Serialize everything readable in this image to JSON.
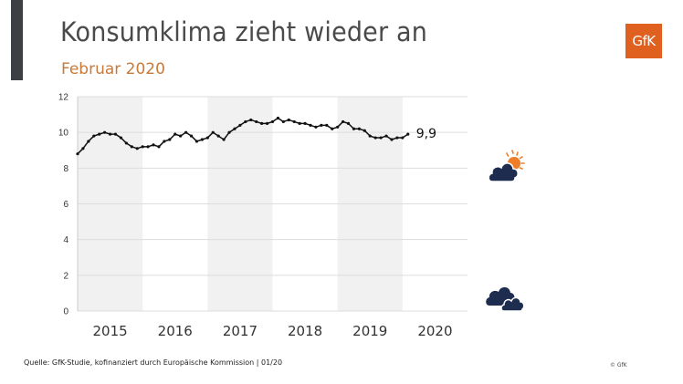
{
  "header": {
    "title": "Konsumklima zieht wieder an",
    "subtitle": "Februar 2020",
    "logo_text": "GfK",
    "accent_color": "#e0601f",
    "subtitle_color": "#c77a3a"
  },
  "footer": {
    "source": "Quelle: GfK-Studie, kofinanziert durch Europäische Kommission | 01/20",
    "copyright": "© GfK"
  },
  "icons": {
    "upper": "sun-behind-cloud-icon",
    "lower": "clouds-icon"
  },
  "chart_data": {
    "type": "line",
    "title": "Konsumklima zieht wieder an",
    "subtitle": "Februar 2020",
    "xlabel": "",
    "ylabel": "",
    "ylim": [
      0,
      12
    ],
    "yticks": [
      0,
      2,
      4,
      6,
      8,
      10,
      12
    ],
    "ytick_labels": [
      "0",
      "2",
      "4",
      "6",
      "8",
      "10",
      "12"
    ],
    "grid": true,
    "categories": [
      "2015",
      "2016",
      "2017",
      "2018",
      "2019",
      "2020"
    ],
    "x_start": "2015-01",
    "x_end": "2020-02",
    "last_value_label": "9,9",
    "series": [
      {
        "name": "Konsumklima",
        "color": "#111111",
        "values": [
          8.8,
          9.1,
          9.5,
          9.8,
          9.9,
          10.0,
          9.9,
          9.9,
          9.7,
          9.4,
          9.2,
          9.1,
          9.2,
          9.2,
          9.3,
          9.2,
          9.5,
          9.6,
          9.9,
          9.8,
          10.0,
          9.8,
          9.5,
          9.6,
          9.7,
          10.0,
          9.8,
          9.6,
          10.0,
          10.2,
          10.4,
          10.6,
          10.7,
          10.6,
          10.5,
          10.5,
          10.6,
          10.8,
          10.6,
          10.7,
          10.6,
          10.5,
          10.5,
          10.4,
          10.3,
          10.4,
          10.4,
          10.2,
          10.3,
          10.6,
          10.5,
          10.2,
          10.2,
          10.1,
          9.8,
          9.7,
          9.7,
          9.8,
          9.6,
          9.7,
          9.7,
          9.9
        ]
      }
    ],
    "bands": [
      {
        "year": "2015",
        "shaded": true
      },
      {
        "year": "2016",
        "shaded": false
      },
      {
        "year": "2017",
        "shaded": true
      },
      {
        "year": "2018",
        "shaded": false
      },
      {
        "year": "2019",
        "shaded": true
      },
      {
        "year": "2020",
        "shaded": false
      }
    ]
  }
}
